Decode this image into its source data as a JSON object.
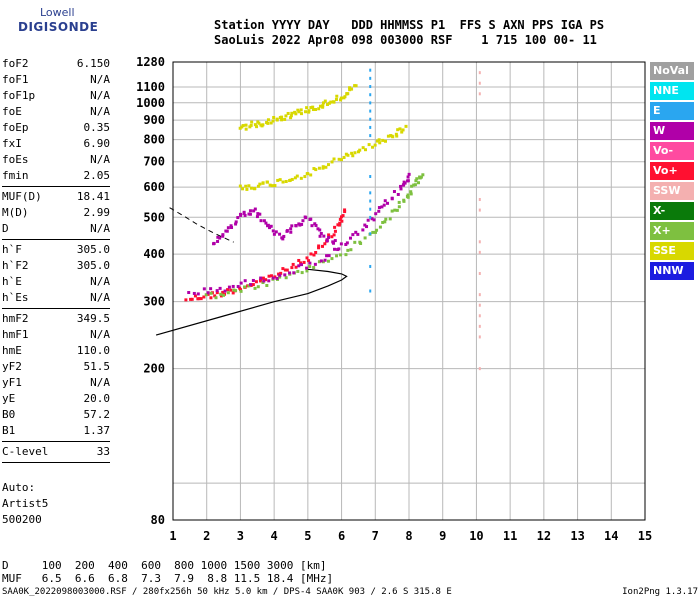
{
  "logo": {
    "line1": "Lowell",
    "line2": "DIGISONDE"
  },
  "header": {
    "line1": "Station YYYY DAY   DDD HHMMSS P1  FFS S AXN PPS IGA PS",
    "line2": "SaoLuis 2022 Apr08 098 003000 RSF    1 715 100 00- 11"
  },
  "params": [
    {
      "name": "foF2",
      "value": "6.150"
    },
    {
      "name": "foF1",
      "value": "N/A"
    },
    {
      "name": "foF1p",
      "value": "N/A"
    },
    {
      "name": "foE",
      "value": "N/A"
    },
    {
      "name": "foEp",
      "value": "0.35"
    },
    {
      "name": "fxI",
      "value": "6.90"
    },
    {
      "name": "foEs",
      "value": "N/A"
    },
    {
      "name": "fmin",
      "value": "2.05",
      "sep": true
    },
    {
      "name": "MUF(D)",
      "value": "18.41"
    },
    {
      "name": "M(D)",
      "value": "2.99"
    },
    {
      "name": "D",
      "value": "N/A",
      "sep": true
    },
    {
      "name": "h`F",
      "value": "305.0"
    },
    {
      "name": "h`F2",
      "value": "305.0"
    },
    {
      "name": "h`E",
      "value": "N/A"
    },
    {
      "name": "h`Es",
      "value": "N/A",
      "sep": true
    },
    {
      "name": "hmF2",
      "value": "349.5"
    },
    {
      "name": "hmF1",
      "value": "N/A"
    },
    {
      "name": "hmE",
      "value": "110.0"
    },
    {
      "name": "yF2",
      "value": "51.5"
    },
    {
      "name": "yF1",
      "value": "N/A"
    },
    {
      "name": "yE",
      "value": "20.0"
    },
    {
      "name": "B0",
      "value": "57.2"
    },
    {
      "name": "B1",
      "value": "1.37",
      "sep": true
    },
    {
      "name": "C-level",
      "value": "33",
      "sep": true
    }
  ],
  "auto": {
    "line1": "Auto:",
    "line2": "Artist5",
    "line3": "500200"
  },
  "muf_table": {
    "line1": "D     100  200  400  600  800 1000 1500 3000 [km]",
    "line2": "MUF   6.5  6.6  6.8  7.3  7.9  8.8 11.5 18.4 [MHz]"
  },
  "footer": "SAA0K_2022098003000.RSF / 280fx256h 50 kHz 5.0 km / DPS-4 SAA0K 903 / 2.6 S 315.8 E",
  "version": "Ion2Png 1.3.17",
  "legend": [
    {
      "label": "NoVal",
      "color": "#a0a0a0"
    },
    {
      "label": "NNE",
      "color": "#00e5f0"
    },
    {
      "label": "E",
      "color": "#2aa6f0"
    },
    {
      "label": "W",
      "color": "#b000a8"
    },
    {
      "label": "Vo-",
      "color": "#ff4aa0"
    },
    {
      "label": "Vo+",
      "color": "#ff1030"
    },
    {
      "label": "SSW",
      "color": "#f4b0b0"
    },
    {
      "label": "X-",
      "color": "#0a7a0a"
    },
    {
      "label": "X+",
      "color": "#7ec040"
    },
    {
      "label": "SSE",
      "color": "#d8d800"
    },
    {
      "label": "NNW",
      "color": "#1c1ce0"
    }
  ],
  "chart_data": {
    "type": "scatter",
    "title": "",
    "xlabel": "",
    "ylabel": "",
    "xlim": [
      1,
      15
    ],
    "ylim": [
      80,
      1280
    ],
    "y_scale": "log",
    "x_ticks": [
      1,
      2,
      3,
      4,
      5,
      6,
      7,
      8,
      9,
      10,
      11,
      12,
      13,
      14,
      15
    ],
    "y_ticks": [
      80,
      100,
      200,
      300,
      400,
      500,
      600,
      700,
      800,
      900,
      1000,
      1100,
      1280
    ],
    "y_tick_labels": [
      "80",
      "",
      "200",
      "300",
      "400",
      "500",
      "600",
      "700",
      "800",
      "900",
      "1000",
      "1100",
      "1280"
    ],
    "grid": true,
    "profile_curve": {
      "name": "",
      "x": [
        0.5,
        2.5,
        4.0,
        5.0,
        5.6,
        6.0,
        6.15,
        6.0,
        5.6,
        5.0
      ],
      "y": [
        245,
        275,
        300,
        315,
        330,
        342,
        349.5,
        355,
        360,
        365
      ]
    },
    "dashed_curve": {
      "name": "",
      "x": [
        0.9,
        1.3,
        1.7,
        2.2,
        2.8
      ],
      "y": [
        530,
        505,
        480,
        455,
        430
      ]
    },
    "traces": [
      {
        "name": "F2 O-trace",
        "color_key": "Vo+",
        "x": [
          1.4,
          2.0,
          2.6,
          3.2,
          3.8,
          4.4,
          5.0,
          5.5,
          5.9,
          6.1
        ],
        "y": [
          305,
          310,
          318,
          330,
          345,
          365,
          390,
          425,
          475,
          520
        ]
      },
      {
        "name": "F2 X-trace",
        "color_key": "X+",
        "x": [
          2.0,
          3.0,
          4.0,
          5.0,
          6.0,
          6.8,
          7.4,
          7.9,
          8.2,
          8.4
        ],
        "y": [
          310,
          320,
          340,
          365,
          400,
          445,
          500,
          560,
          610,
          650
        ]
      },
      {
        "name": "F2 O-trace (W)",
        "color_key": "W",
        "x": [
          1.5,
          2.5,
          3.5,
          4.5,
          5.5,
          6.2,
          6.8,
          7.3,
          7.8,
          8.0
        ],
        "y": [
          315,
          325,
          340,
          360,
          390,
          430,
          480,
          540,
          600,
          640
        ]
      },
      {
        "name": "2-hop trace",
        "color_key": "SSE",
        "x": [
          3.0,
          3.5,
          4.0,
          4.6,
          5.2,
          5.8,
          6.4,
          7.0,
          7.5,
          7.9
        ],
        "y": [
          600,
          605,
          615,
          635,
          660,
          700,
          740,
          780,
          820,
          860
        ]
      },
      {
        "name": "3-hop trace",
        "color_key": "SSE",
        "x": [
          3.0,
          3.5,
          4.0,
          4.5,
          5.0,
          5.5,
          6.0,
          6.4
        ],
        "y": [
          860,
          880,
          905,
          930,
          960,
          990,
          1040,
          1100
        ]
      },
      {
        "name": "spread W",
        "color_key": "W",
        "x": [
          2.2,
          2.6,
          3.0,
          3.4,
          3.8,
          4.2,
          4.6,
          5.0,
          5.4,
          5.8
        ],
        "y": [
          420,
          460,
          500,
          520,
          480,
          440,
          470,
          500,
          450,
          430
        ]
      }
    ],
    "vertical_streaks": [
      {
        "x": 6.85,
        "ymin": 320,
        "ymax": 1280,
        "color_key": "E"
      },
      {
        "x": 10.1,
        "ymin": 200,
        "ymax": 1200,
        "color_key": "SSW"
      }
    ]
  }
}
